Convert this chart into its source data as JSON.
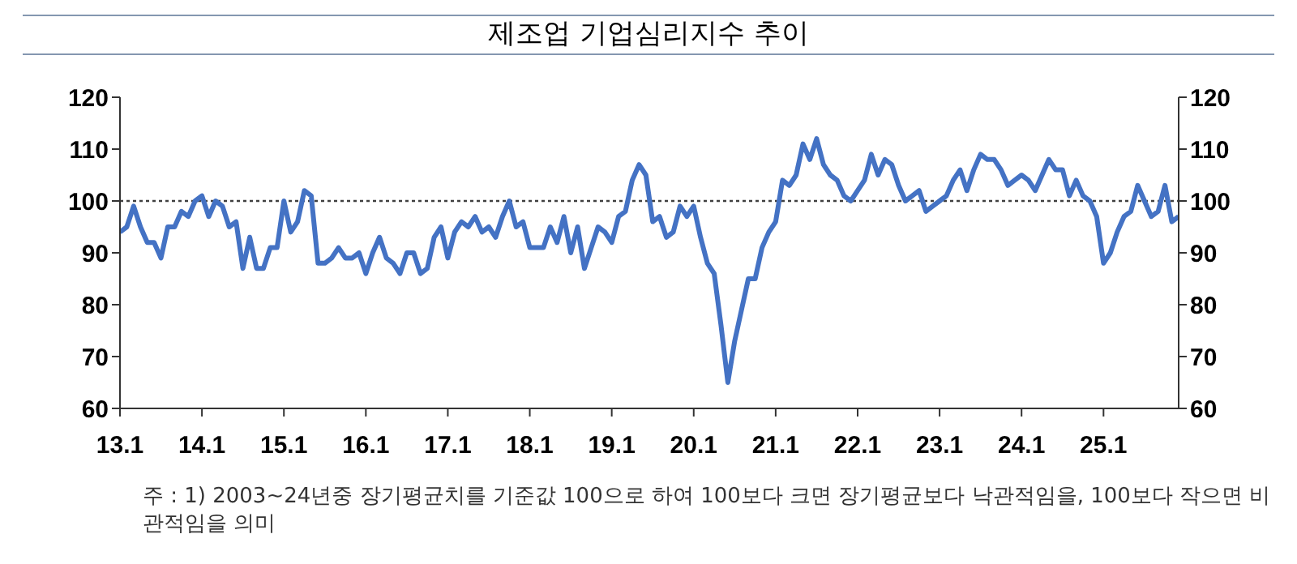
{
  "chart_data": {
    "type": "line",
    "title": "제조업 기업심리지수 추이",
    "categories": [
      "13.1",
      null,
      null,
      null,
      null,
      null,
      null,
      null,
      null,
      null,
      null,
      null,
      "14.1",
      null,
      null,
      null,
      null,
      null,
      null,
      null,
      null,
      null,
      null,
      null,
      "15.1",
      null,
      null,
      null,
      null,
      null,
      null,
      null,
      null,
      null,
      null,
      null,
      "16.1",
      null,
      null,
      null,
      null,
      null,
      null,
      null,
      null,
      null,
      null,
      null,
      "17.1",
      null,
      null,
      null,
      null,
      null,
      null,
      null,
      null,
      null,
      null,
      null,
      "18.1",
      null,
      null,
      null,
      null,
      null,
      null,
      null,
      null,
      null,
      null,
      null,
      "19.1",
      null,
      null,
      null,
      null,
      null,
      null,
      null,
      null,
      null,
      null,
      null,
      "20.1",
      null,
      null,
      null,
      null,
      null,
      null,
      null,
      null,
      null,
      null,
      null,
      "21.1",
      null,
      null,
      null,
      null,
      null,
      null,
      null,
      null,
      null,
      null,
      null,
      "22.1",
      null,
      null,
      null,
      null,
      null,
      null,
      null,
      null,
      null,
      null,
      null,
      "23.1",
      null,
      null,
      null,
      null,
      null,
      null,
      null,
      null,
      null,
      null,
      null,
      "24.1",
      null,
      null,
      null,
      null,
      null,
      null,
      null,
      null,
      null,
      null,
      null,
      "25.1",
      null,
      null,
      null,
      null,
      null,
      null,
      null,
      null,
      null,
      null,
      null
    ],
    "series": [
      {
        "color": "#4472c4",
        "values": [
          94,
          95,
          99,
          95,
          92,
          92,
          89,
          95,
          95,
          98,
          97,
          100,
          101,
          97,
          100,
          99,
          95,
          96,
          87,
          93,
          87,
          87,
          91,
          91,
          100,
          94,
          96,
          102,
          101,
          88,
          88,
          89,
          91,
          89,
          89,
          90,
          86,
          90,
          93,
          89,
          88,
          86,
          90,
          90,
          86,
          87,
          93,
          95,
          89,
          94,
          96,
          95,
          97,
          94,
          95,
          93,
          97,
          100,
          95,
          96,
          91,
          91,
          91,
          95,
          92,
          97,
          90,
          95,
          87,
          91,
          95,
          94,
          92,
          97,
          98,
          104,
          107,
          105,
          96,
          97,
          93,
          94,
          99,
          97,
          99,
          93,
          88,
          86,
          76,
          65,
          73,
          79,
          85,
          85,
          91,
          94,
          96,
          104,
          103,
          105,
          111,
          108,
          112,
          107,
          105,
          104,
          101,
          100,
          102,
          104,
          109,
          105,
          108,
          107,
          103,
          100,
          101,
          102,
          98,
          99,
          100,
          101,
          104,
          106,
          102,
          106,
          109,
          108,
          108,
          106,
          103,
          104,
          105,
          104,
          102,
          105,
          108,
          106,
          106,
          101,
          104,
          101,
          100,
          97,
          88,
          90,
          94,
          97,
          98,
          103,
          100,
          97,
          98,
          103,
          96,
          97
        ]
      }
    ],
    "ylim": [
      60,
      120
    ],
    "yticks": [
      60,
      70,
      80,
      90,
      100,
      110,
      120
    ],
    "y2lim": [
      60,
      120
    ],
    "y2ticks": [
      60,
      70,
      80,
      90,
      100,
      110,
      120
    ],
    "ref_lines": [
      {
        "axis": "y",
        "value": 100,
        "label": null,
        "color": "#404040",
        "line_style": "dotted"
      }
    ],
    "grid": false,
    "legend": false,
    "marker": "none",
    "line_style": "solid",
    "annotations": [
      "주 : 1) 2003~24년중 장기평균치를 기준값 100으로 하여 100보다 크면 장기평균보다 낙관적임을, 100보다 작으면 비관적임을 의미"
    ]
  }
}
